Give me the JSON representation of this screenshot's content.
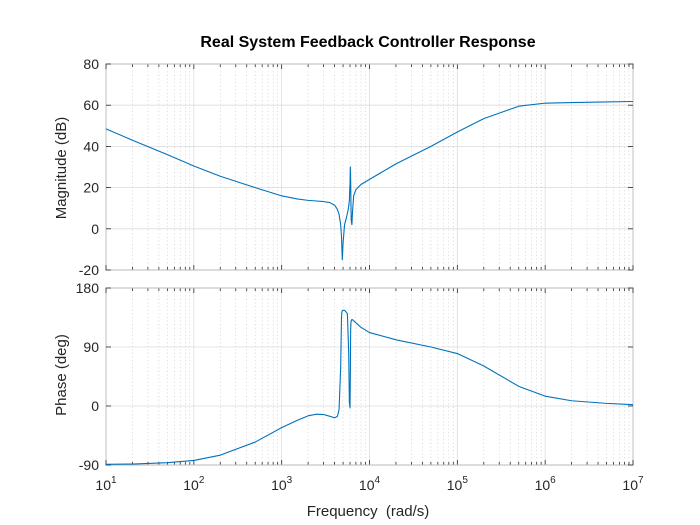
{
  "chart_data": [
    {
      "type": "line",
      "title": "Real System Feedback Controller Response",
      "xlabel": "",
      "ylabel": "Magnitude (dB)",
      "x_scale": "log",
      "xlim": [
        10,
        10000000
      ],
      "ylim": [
        -20,
        80
      ],
      "yticks": [
        "-20",
        "0",
        "20",
        "40",
        "60",
        "80"
      ],
      "grid": true,
      "color": "#0072BD",
      "series": [
        {
          "x": [
            10,
            20,
            50,
            100,
            200,
            500,
            1000,
            1500,
            2000,
            2500,
            3000,
            3500,
            4000,
            4300,
            4500,
            4700,
            4800,
            4900,
            5000,
            5200,
            5500,
            5700,
            5800,
            5900,
            6000,
            6050,
            6100,
            6150,
            6200,
            6300,
            6400,
            6600,
            7000,
            8000,
            10000,
            20000,
            50000,
            100000,
            200000,
            500000,
            1000000,
            2000000,
            5000000,
            10000000
          ],
          "values": [
            48.5,
            43,
            36,
            30.5,
            25.5,
            20,
            16,
            14.5,
            13.8,
            13.5,
            13.2,
            12.8,
            11.5,
            9.5,
            7,
            2,
            -4,
            -15,
            -7,
            2,
            6,
            9,
            11,
            14,
            22,
            30,
            24,
            12,
            4,
            2,
            8,
            16,
            19,
            21.5,
            24,
            31.5,
            40,
            47,
            53.5,
            59.5,
            61,
            61.3,
            61.6,
            61.8
          ]
        }
      ]
    },
    {
      "type": "line",
      "title": "",
      "xlabel": "Frequency  (rad/s)",
      "ylabel": "Phase (deg)",
      "x_scale": "log",
      "xlim": [
        10,
        10000000
      ],
      "ylim": [
        -90,
        180
      ],
      "yticks": [
        "-90",
        "0",
        "90",
        "180"
      ],
      "xticks": [
        "1",
        "2",
        "3",
        "4",
        "5",
        "6",
        "7"
      ],
      "xtick_base": "10",
      "grid": true,
      "color": "#0072BD",
      "series": [
        {
          "x": [
            10,
            20,
            50,
            100,
            200,
            500,
            1000,
            1500,
            2000,
            2500,
            3000,
            3500,
            4000,
            4300,
            4500,
            4700,
            4800,
            4850,
            4950,
            5200,
            5600,
            5800,
            5900,
            6000,
            6050,
            6100,
            6150,
            6200,
            6300,
            6500,
            7000,
            8000,
            10000,
            20000,
            50000,
            100000,
            200000,
            500000,
            1000000,
            2000000,
            5000000,
            10000000
          ],
          "values": [
            -89,
            -88.5,
            -86.5,
            -83,
            -75,
            -55,
            -33,
            -22,
            -15,
            -12.5,
            -13,
            -15.5,
            -18,
            -16,
            -6,
            60,
            136,
            144,
            146,
            146,
            141,
            80,
            5,
            -3,
            45,
            115,
            128,
            130,
            132,
            131,
            127,
            120,
            112,
            101,
            90,
            80,
            61,
            30,
            15,
            8,
            4,
            2
          ]
        }
      ]
    }
  ]
}
